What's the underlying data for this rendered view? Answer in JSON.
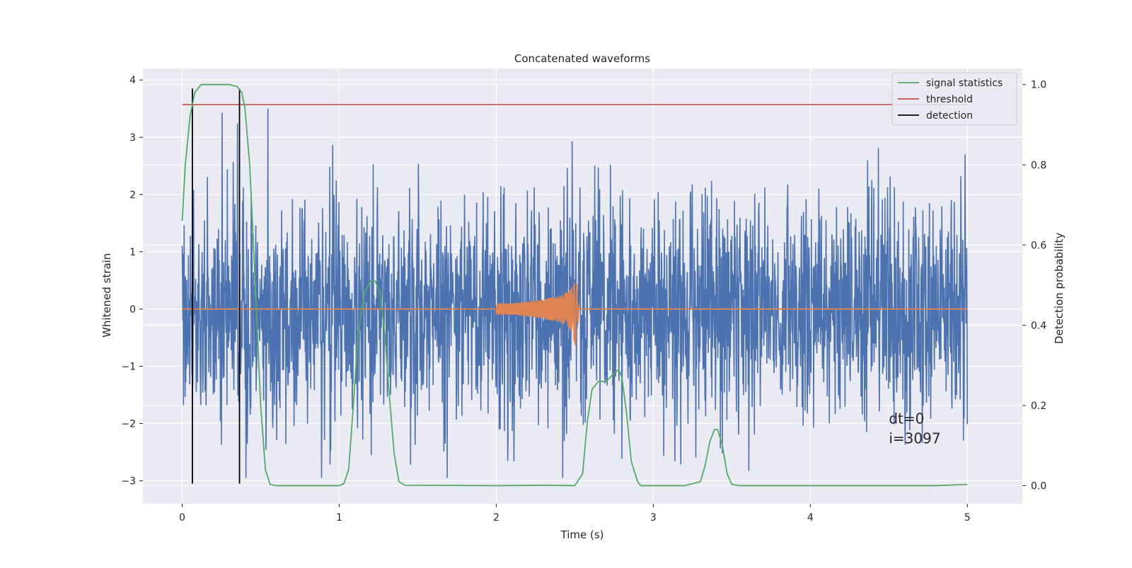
{
  "chart_data": {
    "type": "line",
    "title": "Concatenated waveforms",
    "xlabel": "Time (s)",
    "ylabel": "Whitened strain",
    "y2label": "Detection probability",
    "xlim": [
      -0.25,
      5.35
    ],
    "ylim": [
      -3.4,
      4.2
    ],
    "y2lim": [
      -0.045,
      1.04
    ],
    "xticks": [
      0,
      1,
      2,
      3,
      4,
      5
    ],
    "yticks": [
      -3,
      -2,
      -1,
      0,
      1,
      2,
      3,
      4
    ],
    "y2ticks": [
      0.0,
      0.2,
      0.4,
      0.6,
      0.8,
      1.0
    ],
    "y2ticklabels": [
      "0.0",
      "0.2",
      "0.4",
      "0.6",
      "0.8",
      "1.0"
    ],
    "yticklabels": [
      "−3",
      "−2",
      "−1",
      "0",
      "1",
      "2",
      "3",
      "4"
    ],
    "grid": true,
    "legend_position": "top-right",
    "colors": {
      "strain": "#4c72b0",
      "template": "#dd8452",
      "statistics": "#55a868",
      "threshold": "#c44e52",
      "detection": "#000000",
      "background": "#eaeaf2"
    },
    "legend": [
      {
        "label": "signal statistics",
        "color": "#55a868"
      },
      {
        "label": "threshold",
        "color": "#c44e52"
      },
      {
        "label": "detection",
        "color": "#000000"
      }
    ],
    "strain_noise": {
      "x_range": [
        0,
        5
      ],
      "approx_min": -2.95,
      "approx_max": 3.85
    },
    "template_chirp": {
      "x": [
        2.0,
        2.1,
        2.2,
        2.3,
        2.4,
        2.45,
        2.48,
        2.5,
        2.52
      ],
      "amplitude": [
        0.1,
        0.1,
        0.13,
        0.17,
        0.23,
        0.3,
        0.4,
        0.6,
        0.0
      ]
    },
    "signal_statistics": {
      "axis": "right",
      "x": [
        0.0,
        0.02,
        0.05,
        0.08,
        0.1,
        0.12,
        0.15,
        0.2,
        0.3,
        0.35,
        0.38,
        0.4,
        0.43,
        0.46,
        0.5,
        0.53,
        0.56,
        0.6,
        1.0,
        1.03,
        1.06,
        1.09,
        1.12,
        1.16,
        1.2,
        1.23,
        1.26,
        1.29,
        1.32,
        1.35,
        1.38,
        1.42,
        2.0,
        2.3,
        2.5,
        2.55,
        2.58,
        2.61,
        2.65,
        2.7,
        2.75,
        2.78,
        2.8,
        2.83,
        2.86,
        2.9,
        2.92,
        3.2,
        3.3,
        3.33,
        3.36,
        3.39,
        3.41,
        3.44,
        3.47,
        3.5,
        3.55,
        4.0,
        4.5,
        4.8,
        5.0
      ],
      "y": [
        0.66,
        0.8,
        0.92,
        0.98,
        0.99,
        1.0,
        1.0,
        1.0,
        1.0,
        0.995,
        0.98,
        0.94,
        0.8,
        0.55,
        0.2,
        0.04,
        0.003,
        0.0,
        0.0,
        0.005,
        0.04,
        0.2,
        0.38,
        0.48,
        0.51,
        0.51,
        0.48,
        0.38,
        0.22,
        0.08,
        0.01,
        0.001,
        0.0,
        0.001,
        0.0,
        0.03,
        0.16,
        0.24,
        0.26,
        0.26,
        0.28,
        0.29,
        0.27,
        0.18,
        0.06,
        0.01,
        0.0,
        0.0,
        0.01,
        0.05,
        0.11,
        0.14,
        0.14,
        0.1,
        0.03,
        0.003,
        0.0,
        0.0,
        0.0,
        0.0,
        0.003
      ]
    },
    "threshold": {
      "axis": "right",
      "value": 0.95,
      "x_range": [
        0,
        5
      ]
    },
    "detections": {
      "x": [
        0.065,
        0.365
      ],
      "y_range": [
        -3.05,
        3.85
      ]
    },
    "annotations": [
      "dt=0",
      "i=3097"
    ],
    "annotation_position": {
      "x": 4.5,
      "y": -2.27
    }
  }
}
